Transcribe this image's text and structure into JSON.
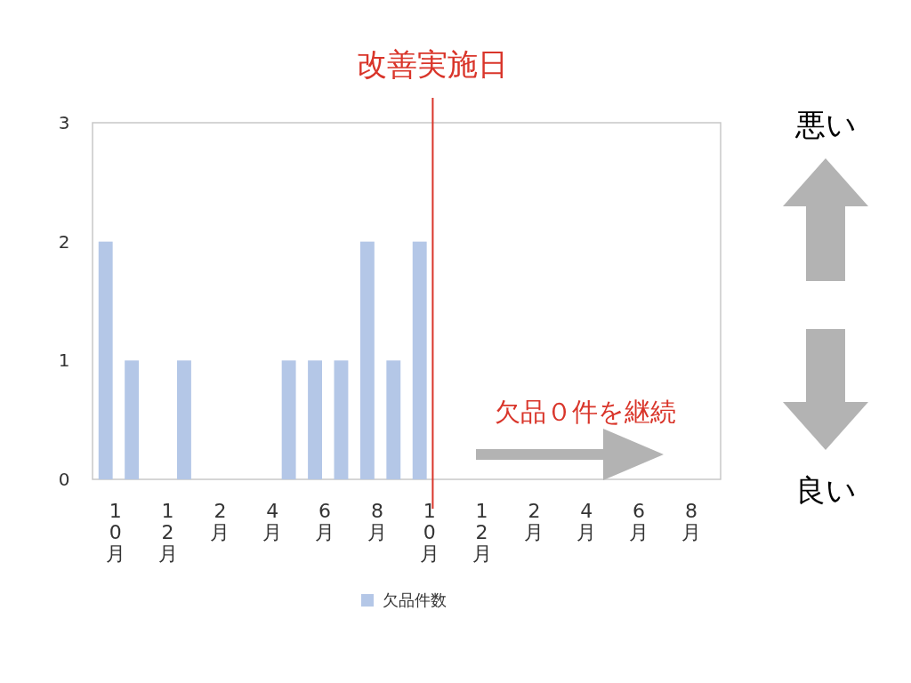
{
  "chart_data": {
    "type": "bar",
    "categories": [
      "10月",
      null,
      "12月",
      null,
      "2月",
      null,
      "4月",
      null,
      "6月",
      null,
      "8月",
      null,
      "10月",
      null,
      "12月",
      null,
      "2月",
      null,
      "4月",
      null,
      "6月",
      null,
      "8月",
      null
    ],
    "series": [
      {
        "name": "欠品件数",
        "color": "#b4c7e7",
        "values": [
          2,
          1,
          0,
          1,
          0,
          0,
          0,
          1,
          1,
          1,
          2,
          1,
          2,
          0,
          0,
          0,
          0,
          0,
          0,
          0,
          0,
          0,
          0,
          0
        ]
      }
    ],
    "ylim": [
      0,
      3
    ],
    "yticks": [
      0,
      1,
      2,
      3
    ],
    "grid": false,
    "legend": "bottom",
    "annotations": [
      "欠品０件を継続",
      "悪い",
      "良い",
      "改善実施日"
    ]
  }
}
